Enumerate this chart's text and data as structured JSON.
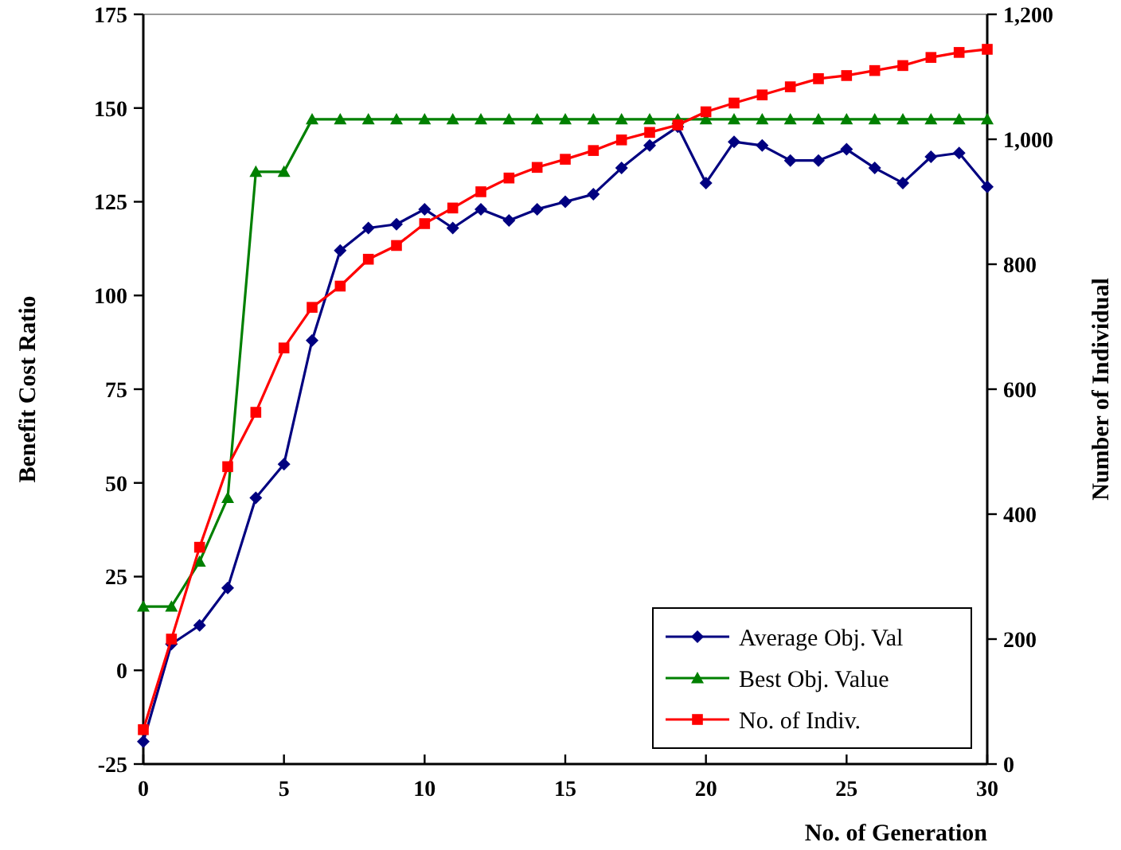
{
  "chart_data": {
    "type": "line",
    "xlabel": "No. of Generation",
    "ylabel": "Benefit Cost Ratio",
    "y2label": "Number of Individual",
    "x": [
      0,
      1,
      2,
      3,
      4,
      5,
      6,
      7,
      8,
      9,
      10,
      11,
      12,
      13,
      14,
      15,
      16,
      17,
      18,
      19,
      20,
      21,
      22,
      23,
      24,
      25,
      26,
      27,
      28,
      29,
      30
    ],
    "series": [
      {
        "name": "Average Obj. Val",
        "color": "#000080",
        "marker": "diamond",
        "values": [
          -19,
          7,
          12,
          22,
          46,
          55,
          88,
          112,
          118,
          119,
          123,
          118,
          123,
          120,
          123,
          125,
          127,
          134,
          140,
          145,
          130,
          141,
          140,
          136,
          136,
          139,
          134,
          130,
          137,
          138,
          129
        ]
      },
      {
        "name": "Best Obj. Value",
        "color": "#008000",
        "marker": "triangle",
        "values": [
          17,
          17,
          29,
          46,
          133,
          133,
          147,
          147,
          147,
          147,
          147,
          147,
          147,
          147,
          147,
          147,
          147,
          147,
          147,
          147,
          147,
          147,
          147,
          147,
          147,
          147,
          147,
          147,
          147,
          147,
          147
        ]
      },
      {
        "name": "No. of Indiv.",
        "color": "#ff0000",
        "marker": "square",
        "axis": "y2",
        "values": [
          55,
          200,
          347,
          476,
          563,
          666,
          731,
          765,
          808,
          830,
          865,
          890,
          916,
          938,
          955,
          968,
          982,
          999,
          1011,
          1023,
          1044,
          1058,
          1071,
          1084,
          1097,
          1102,
          1110,
          1118,
          1131,
          1139,
          1144
        ]
      }
    ],
    "xlim": [
      0,
      30
    ],
    "xticks": [
      0,
      5,
      10,
      15,
      20,
      25,
      30
    ],
    "ylim": [
      -25,
      175
    ],
    "yticks": [
      -25,
      0,
      25,
      50,
      75,
      100,
      125,
      150,
      175
    ],
    "y2lim": [
      0,
      1200
    ],
    "y2ticks": [
      0,
      200,
      400,
      600,
      800,
      {
        "value": 1000,
        "label": "1,000"
      },
      {
        "value": 1200,
        "label": "1,200"
      }
    ],
    "legend": "bottom right",
    "grid": false,
    "line_style": "solid"
  }
}
